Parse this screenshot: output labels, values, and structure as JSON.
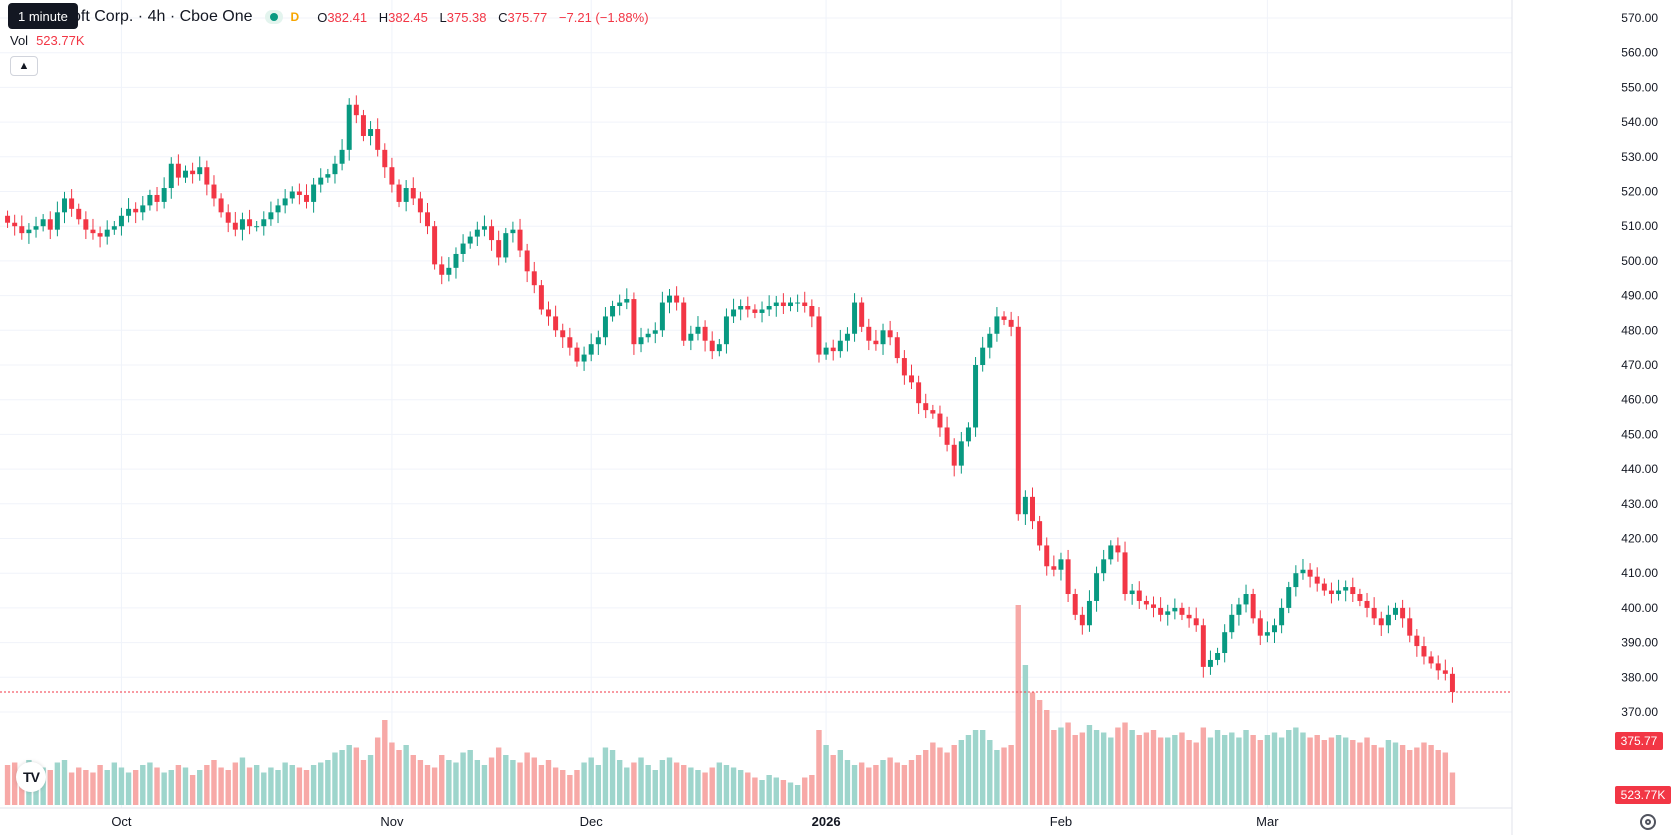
{
  "legend": {
    "tooltip": "1 minute",
    "title": "oft Corp. · 4h · Cboe One",
    "interval_badge": "D",
    "open_key": "O",
    "open": "382.41",
    "high_key": "H",
    "high": "382.45",
    "low_key": "L",
    "low": "375.38",
    "close_key": "C",
    "close": "375.77",
    "change": "−7.21 (−1.88%)",
    "vol_key": "Vol",
    "vol_value": "523.77K",
    "collapse_icon": "chevron-up-icon"
  },
  "logo_text": "TV",
  "colors": {
    "up": "#089981",
    "down": "#f23645",
    "up_vol": "#9ed5cc",
    "down_vol": "#f7a9a7",
    "grid": "#f0f3fa",
    "text": "#131722"
  },
  "chart_data": {
    "type": "candlestick",
    "ylim": [
      362,
      574
    ],
    "y_ticks": [
      "570.00",
      "560.00",
      "550.00",
      "540.00",
      "530.00",
      "520.00",
      "510.00",
      "500.00",
      "490.00",
      "480.00",
      "470.00",
      "460.00",
      "450.00",
      "440.00",
      "430.00",
      "420.00",
      "410.00",
      "400.00",
      "390.00",
      "380.00",
      "370.00"
    ],
    "x_ticks": [
      {
        "label": "Oct",
        "index": 16
      },
      {
        "label": "Nov",
        "index": 54
      },
      {
        "label": "Dec",
        "index": 82
      },
      {
        "label": "2026",
        "index": 115
      },
      {
        "label": "Feb",
        "index": 148
      },
      {
        "label": "Mar",
        "index": 177
      }
    ],
    "last_price_label": "375.77",
    "last_price": 375.77,
    "volume_label": "523.77K",
    "close": [
      511,
      510,
      508,
      509,
      510,
      512,
      509,
      514,
      518,
      515,
      512,
      509,
      508,
      507,
      509,
      510,
      513,
      515,
      514,
      516,
      519,
      517,
      521,
      528,
      524,
      526,
      525,
      527,
      522,
      518,
      514,
      511,
      509,
      512,
      510,
      510,
      512,
      514,
      516,
      518,
      520,
      519,
      517,
      522,
      524,
      525,
      528,
      532,
      545,
      542,
      536,
      538,
      532,
      527,
      522,
      517,
      521,
      518,
      514,
      510,
      499,
      496,
      498,
      502,
      505,
      507,
      509,
      510,
      506,
      501,
      508,
      509,
      503,
      497,
      493,
      486,
      484,
      480,
      478,
      475,
      471,
      473,
      476,
      478,
      484,
      487,
      488,
      489,
      476,
      478,
      479,
      480,
      488,
      490,
      488,
      477,
      479,
      481,
      477,
      474,
      476,
      484,
      486,
      487,
      486,
      485,
      486,
      487,
      488,
      487,
      488,
      488,
      487,
      484,
      473,
      475,
      474,
      477,
      479,
      488,
      481,
      477,
      476,
      480,
      478,
      472,
      467,
      465,
      459,
      457,
      456,
      452,
      447,
      441,
      448,
      452,
      470,
      475,
      479,
      484,
      483,
      481,
      427,
      432,
      425,
      418,
      412,
      411,
      414,
      404,
      398,
      395,
      402,
      410,
      414,
      418,
      416,
      404,
      405,
      402,
      401,
      400,
      398,
      399,
      400,
      398,
      397,
      395,
      383,
      385,
      387,
      393,
      398,
      401,
      404,
      397,
      392,
      393,
      395,
      400,
      406,
      410,
      411,
      409,
      407,
      405,
      404,
      405,
      406,
      404,
      402,
      400,
      397,
      395,
      398,
      400,
      397,
      392,
      389,
      386,
      384,
      382,
      381,
      375.77
    ],
    "volume": [
      16,
      17,
      14,
      18,
      12,
      15,
      14,
      17,
      18,
      13,
      15,
      14,
      13,
      16,
      14,
      17,
      15,
      13,
      14,
      16,
      17,
      15,
      13,
      14,
      16,
      15,
      12,
      14,
      16,
      18,
      15,
      14,
      17,
      19,
      15,
      16,
      13,
      15,
      14,
      17,
      16,
      15,
      14,
      16,
      17,
      18,
      21,
      22,
      24,
      23,
      18,
      20,
      27,
      34,
      25,
      22,
      24,
      20,
      18,
      16,
      15,
      20,
      18,
      17,
      21,
      22,
      18,
      16,
      19,
      23,
      20,
      18,
      17,
      21,
      19,
      16,
      18,
      15,
      14,
      12,
      14,
      17,
      19,
      16,
      23,
      22,
      18,
      15,
      17,
      19,
      16,
      14,
      18,
      19,
      17,
      16,
      15,
      14,
      13,
      15,
      17,
      16,
      15,
      14,
      13,
      11,
      10,
      12,
      11,
      10,
      9,
      8,
      11,
      12,
      30,
      24,
      20,
      22,
      18,
      16,
      17,
      15,
      16,
      18,
      19,
      17,
      16,
      18,
      20,
      22,
      25,
      23,
      21,
      24,
      26,
      28,
      30,
      30,
      26,
      22,
      23,
      24,
      80,
      56,
      45,
      42,
      38,
      30,
      31,
      33,
      28,
      29,
      32,
      30,
      29,
      27,
      31,
      33,
      30,
      28,
      29,
      30,
      27,
      27,
      28,
      29,
      26,
      25,
      31,
      27,
      30,
      28,
      29,
      27,
      30,
      28,
      26,
      28,
      29,
      27,
      30,
      31,
      29,
      27,
      28,
      26,
      27,
      28,
      27,
      26,
      25,
      27,
      24,
      23,
      26,
      25,
      24,
      22,
      23,
      25,
      24,
      22,
      21,
      13
    ]
  }
}
